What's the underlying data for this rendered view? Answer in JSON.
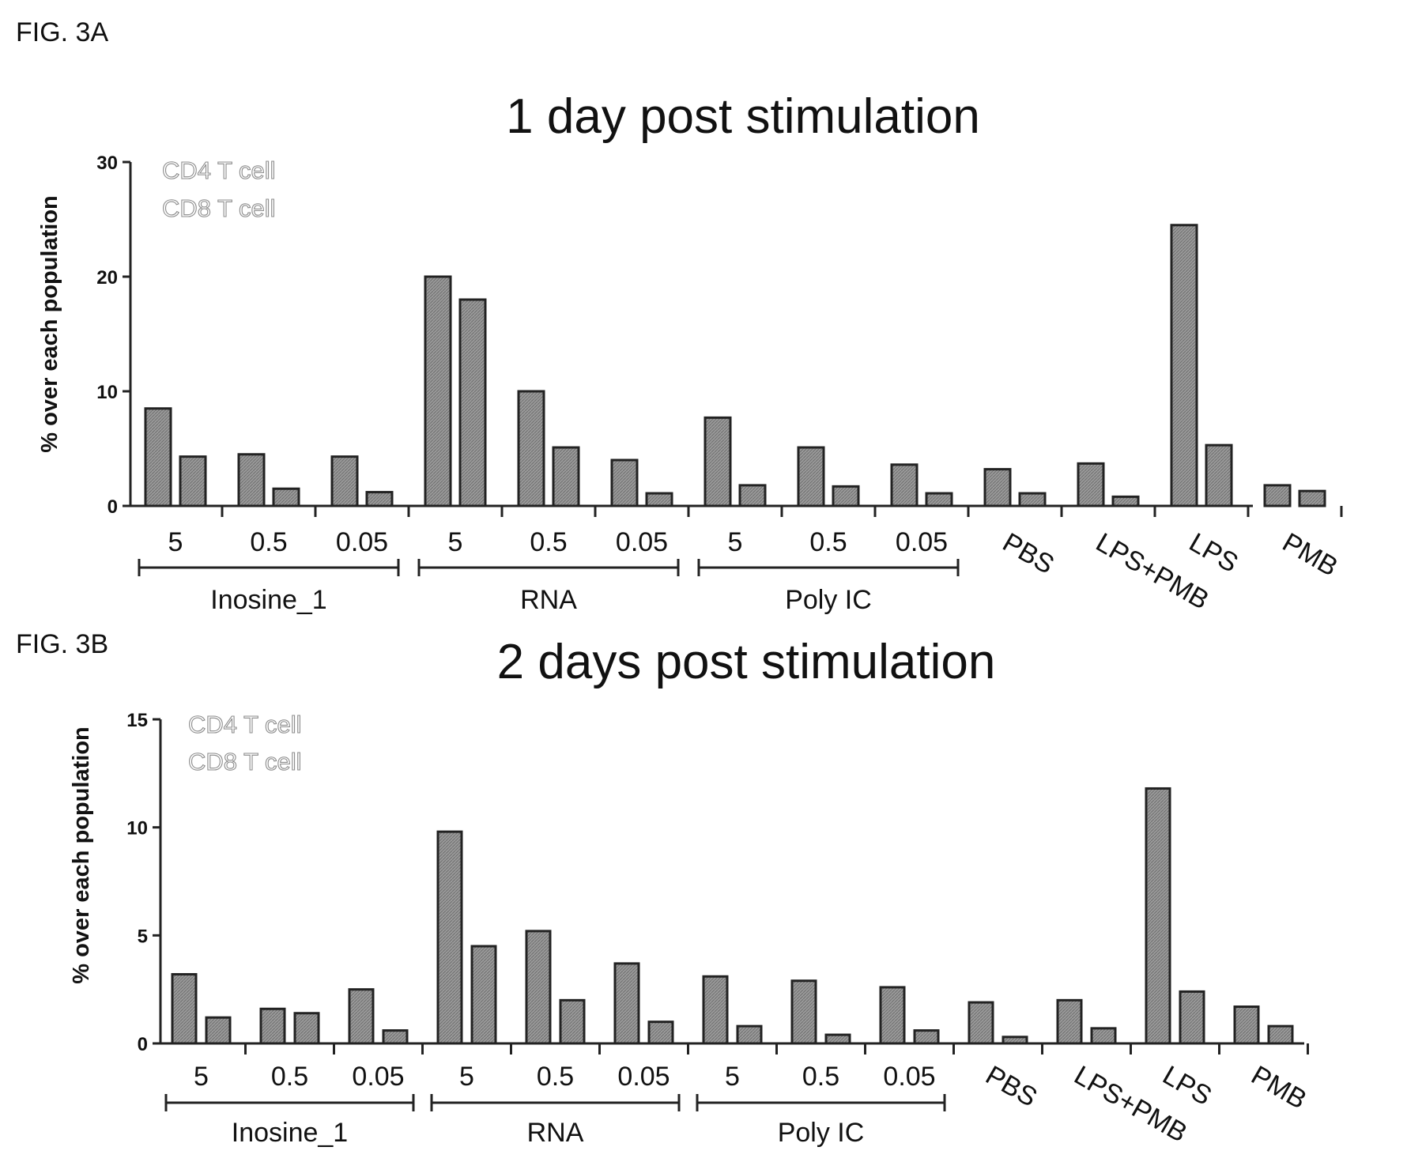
{
  "figures": [
    {
      "label": "FIG. 3A",
      "chart_data": {
        "type": "bar",
        "title": "1 day post stimulation",
        "ylabel": "% over each population",
        "xlabel": "",
        "ylim": [
          0,
          30
        ],
        "yticks": [
          0,
          10,
          20,
          30
        ],
        "categories": [
          "5",
          "0.5",
          "0.05",
          "5",
          "0.5",
          "0.05",
          "5",
          "0.5",
          "0.05",
          "PBS",
          "LPS+PMB",
          "LPS",
          "PMB"
        ],
        "category_groups": [
          {
            "name": "Inosine_1",
            "from": 0,
            "to": 2
          },
          {
            "name": "RNA",
            "from": 3,
            "to": 5
          },
          {
            "name": "Poly IC",
            "from": 6,
            "to": 8
          }
        ],
        "series": [
          {
            "name": "CD4 T cell",
            "values": [
              8.5,
              4.5,
              4.3,
              20.0,
              10.0,
              4.0,
              7.7,
              5.1,
              3.6,
              3.2,
              3.7,
              24.5,
              1.8
            ]
          },
          {
            "name": "CD8 T cell",
            "values": [
              4.3,
              1.5,
              1.2,
              18.0,
              5.1,
              1.1,
              1.8,
              1.7,
              1.1,
              1.1,
              0.8,
              5.3,
              1.3
            ]
          }
        ],
        "legend_position": "top-left",
        "grid": false
      }
    },
    {
      "label": "FIG. 3B",
      "chart_data": {
        "type": "bar",
        "title": "2 days post stimulation",
        "ylabel": "% over each population",
        "xlabel": "",
        "ylim": [
          0,
          15
        ],
        "yticks": [
          0,
          5,
          10,
          15
        ],
        "categories": [
          "5",
          "0.5",
          "0.05",
          "5",
          "0.5",
          "0.05",
          "5",
          "0.5",
          "0.05",
          "PBS",
          "LPS+PMB",
          "LPS",
          "PMB"
        ],
        "category_groups": [
          {
            "name": "Inosine_1",
            "from": 0,
            "to": 2
          },
          {
            "name": "RNA",
            "from": 3,
            "to": 5
          },
          {
            "name": "Poly IC",
            "from": 6,
            "to": 8
          }
        ],
        "series": [
          {
            "name": "CD4 T cell",
            "values": [
              3.2,
              1.6,
              2.5,
              9.8,
              5.2,
              3.7,
              3.1,
              2.9,
              2.6,
              1.9,
              2.0,
              11.8,
              1.7
            ]
          },
          {
            "name": "CD8 T cell",
            "values": [
              1.2,
              1.4,
              0.6,
              4.5,
              2.0,
              1.0,
              0.8,
              0.4,
              0.6,
              0.3,
              0.7,
              2.4,
              0.8
            ]
          }
        ],
        "legend_position": "top-left",
        "grid": false
      }
    }
  ],
  "colors": {
    "bar_fill": "#909090",
    "bar_stroke": "#222222",
    "legend_text": "#8c8c8c"
  }
}
